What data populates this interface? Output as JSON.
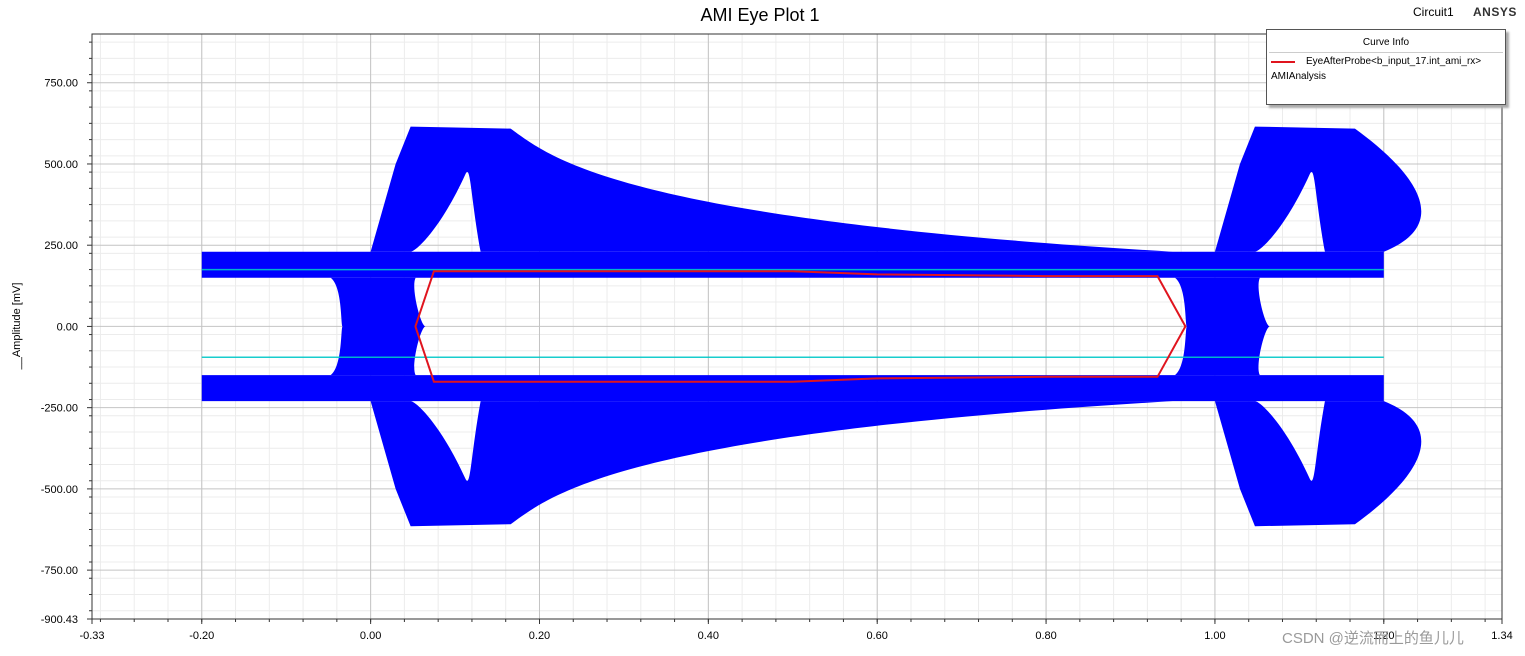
{
  "chart_data": {
    "type": "line",
    "title": "AMI Eye Plot 1",
    "ylabel": "__Amplitude [mV]",
    "xlabel": "",
    "xlim": [
      -0.33,
      1.34
    ],
    "ylim": [
      -900.43,
      900
    ],
    "x_ticks": [
      "-0.33",
      "-0.20",
      "0.00",
      "0.20",
      "0.40",
      "0.60",
      "0.80",
      "1.00",
      "1.20",
      "1.34"
    ],
    "x_tick_values": [
      -0.33,
      -0.2,
      0.0,
      0.2,
      0.4,
      0.6,
      0.8,
      1.0,
      1.2,
      1.34
    ],
    "y_ticks": [
      "750.00",
      "500.00",
      "250.00",
      "0.00",
      "-250.00",
      "-500.00",
      "-750.00",
      "-900.43"
    ],
    "y_tick_values": [
      750,
      500,
      250,
      0,
      -250,
      -500,
      -750,
      -900.43
    ],
    "grid": true,
    "legend_position": "top-right",
    "legend": {
      "title": "Curve Info",
      "entry": "EyeAfterProbe<b_input_17.int_ami_rx>",
      "subentry": "AMIAnalysis",
      "color": "#e0141e"
    },
    "eye_color": "#0000ff",
    "trace_color": "#00c8c8",
    "eye_density": {
      "x_range": [
        -0.2,
        1.2
      ],
      "upper_band_mV": [
        150,
        230
      ],
      "lower_band_mV": [
        -230,
        -150
      ],
      "peak_mV": 615,
      "trough_mV": -615,
      "crossings_x": [
        0.0,
        1.0
      ]
    },
    "series": [
      {
        "name": "EyeAfterProbe<b_input_17.int_ami_rx>",
        "x": [
          0.053,
          0.075,
          0.5,
          0.6,
          0.8,
          0.932,
          0.965,
          0.932,
          0.8,
          0.6,
          0.5,
          0.075,
          0.053
        ],
        "y": [
          0,
          170,
          170,
          160,
          155,
          155,
          0,
          -155,
          -155,
          -160,
          -170,
          -170,
          0
        ]
      }
    ]
  },
  "header": {
    "circuit": "Circuit1",
    "brand": "ANSYS"
  },
  "watermark": "CSDN @逆流而上的鱼儿儿"
}
